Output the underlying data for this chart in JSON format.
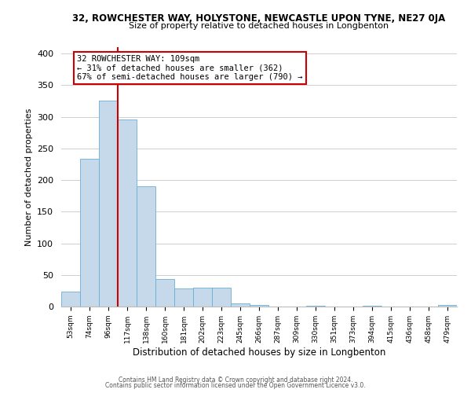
{
  "title": "32, ROWCHESTER WAY, HOLYSTONE, NEWCASTLE UPON TYNE, NE27 0JA",
  "subtitle": "Size of property relative to detached houses in Longbenton",
  "xlabel": "Distribution of detached houses by size in Longbenton",
  "ylabel": "Number of detached properties",
  "bar_labels": [
    "53sqm",
    "74sqm",
    "96sqm",
    "117sqm",
    "138sqm",
    "160sqm",
    "181sqm",
    "202sqm",
    "223sqm",
    "245sqm",
    "266sqm",
    "287sqm",
    "309sqm",
    "330sqm",
    "351sqm",
    "373sqm",
    "394sqm",
    "415sqm",
    "436sqm",
    "458sqm",
    "479sqm"
  ],
  "bar_values": [
    23,
    233,
    325,
    296,
    190,
    43,
    29,
    30,
    30,
    5,
    3,
    0,
    0,
    1,
    0,
    0,
    1,
    0,
    0,
    0,
    2
  ],
  "bar_color": "#c5d9ea",
  "bar_edge_color": "#6aaed6",
  "property_sqm": 109,
  "annotation_text": "32 ROWCHESTER WAY: 109sqm\n← 31% of detached houses are smaller (362)\n67% of semi-detached houses are larger (790) →",
  "annotation_box_color": "white",
  "annotation_box_edge": "#cc0000",
  "property_line_color": "#cc0000",
  "ylim": [
    0,
    410
  ],
  "yticks": [
    0,
    50,
    100,
    150,
    200,
    250,
    300,
    350,
    400
  ],
  "footer_line1": "Contains HM Land Registry data © Crown copyright and database right 2024.",
  "footer_line2": "Contains public sector information licensed under the Open Government Licence v3.0.",
  "background_color": "#ffffff",
  "grid_color": "#d0d0d0"
}
